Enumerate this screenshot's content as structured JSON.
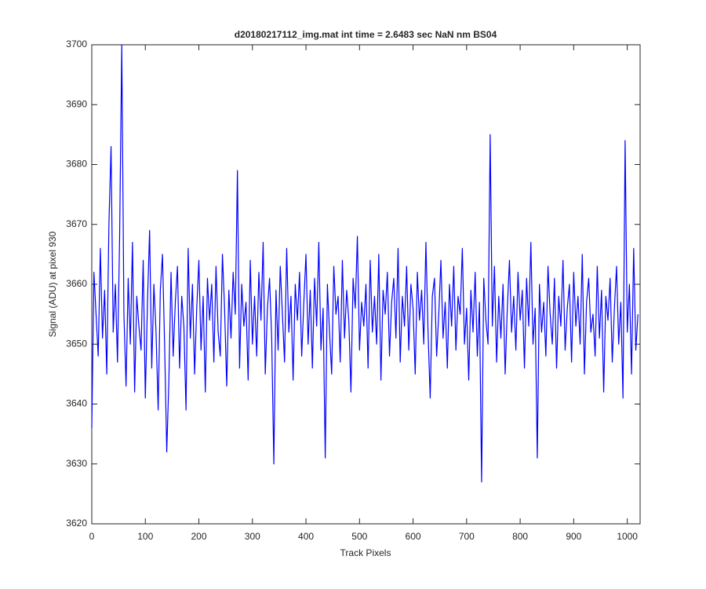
{
  "chart_data": {
    "type": "line",
    "title": "d20180217112_img.mat int time = 2.6483 sec  NaN nm BS04",
    "x_label": "Track Pixels",
    "y_label": "Signal (ADU) at pixel 930",
    "xlim": [
      0,
      1024
    ],
    "xticks": [
      0,
      100,
      200,
      300,
      400,
      500,
      600,
      700,
      800,
      900,
      1000
    ],
    "ylim": [
      3620,
      3700
    ],
    "yticks": [
      3620,
      3630,
      3640,
      3650,
      3660,
      3670,
      3680,
      3690,
      3700
    ],
    "grid": false,
    "x": [
      0,
      4,
      8,
      12,
      16,
      20,
      24,
      28,
      32,
      36,
      40,
      44,
      48,
      52,
      56,
      60,
      64,
      68,
      72,
      76,
      80,
      84,
      88,
      92,
      96,
      100,
      104,
      108,
      112,
      116,
      120,
      124,
      128,
      132,
      136,
      140,
      144,
      148,
      152,
      156,
      160,
      164,
      168,
      172,
      176,
      180,
      184,
      188,
      192,
      196,
      200,
      204,
      208,
      212,
      216,
      220,
      224,
      228,
      232,
      236,
      240,
      244,
      248,
      252,
      256,
      260,
      264,
      268,
      272,
      276,
      280,
      284,
      288,
      292,
      296,
      300,
      304,
      308,
      312,
      316,
      320,
      324,
      328,
      332,
      336,
      340,
      344,
      348,
      352,
      356,
      360,
      364,
      368,
      372,
      376,
      380,
      384,
      388,
      392,
      396,
      400,
      404,
      408,
      412,
      416,
      420,
      424,
      428,
      432,
      436,
      440,
      444,
      448,
      452,
      456,
      460,
      464,
      468,
      472,
      476,
      480,
      484,
      488,
      492,
      496,
      500,
      504,
      508,
      512,
      516,
      520,
      524,
      528,
      532,
      536,
      540,
      544,
      548,
      552,
      556,
      560,
      564,
      568,
      572,
      576,
      580,
      584,
      588,
      592,
      596,
      600,
      604,
      608,
      612,
      616,
      620,
      624,
      628,
      632,
      636,
      640,
      644,
      648,
      652,
      656,
      660,
      664,
      668,
      672,
      676,
      680,
      684,
      688,
      692,
      696,
      700,
      704,
      708,
      712,
      716,
      720,
      724,
      728,
      732,
      736,
      740,
      744,
      748,
      752,
      756,
      760,
      764,
      768,
      772,
      776,
      780,
      784,
      788,
      792,
      796,
      800,
      804,
      808,
      812,
      816,
      820,
      824,
      828,
      832,
      836,
      840,
      844,
      848,
      852,
      856,
      860,
      864,
      868,
      872,
      876,
      880,
      884,
      888,
      892,
      896,
      900,
      904,
      908,
      912,
      916,
      920,
      924,
      928,
      932,
      936,
      940,
      944,
      948,
      952,
      956,
      960,
      964,
      968,
      972,
      976,
      980,
      984,
      988,
      992,
      996,
      1000,
      1004,
      1008,
      1012,
      1016,
      1020
    ],
    "series": [
      {
        "color": "#0000ff",
        "values": [
          3636,
          3662,
          3655,
          3648,
          3666,
          3651,
          3659,
          3645,
          3670,
          3683,
          3652,
          3660,
          3647,
          3668,
          3700,
          3655,
          3643,
          3661,
          3650,
          3667,
          3642,
          3658,
          3653,
          3649,
          3664,
          3641,
          3657,
          3669,
          3646,
          3660,
          3652,
          3639,
          3659,
          3665,
          3650,
          3632,
          3644,
          3662,
          3648,
          3657,
          3663,
          3646,
          3658,
          3653,
          3639,
          3666,
          3651,
          3660,
          3645,
          3656,
          3664,
          3649,
          3658,
          3642,
          3661,
          3654,
          3660,
          3647,
          3663,
          3652,
          3648,
          3665,
          3656,
          3643,
          3659,
          3651,
          3662,
          3655,
          3679,
          3646,
          3660,
          3653,
          3657,
          3644,
          3664,
          3650,
          3658,
          3648,
          3662,
          3654,
          3667,
          3645,
          3656,
          3661,
          3651,
          3630,
          3659,
          3649,
          3663,
          3655,
          3647,
          3666,
          3652,
          3658,
          3644,
          3660,
          3654,
          3662,
          3648,
          3657,
          3665,
          3650,
          3659,
          3646,
          3661,
          3653,
          3667,
          3649,
          3656,
          3631,
          3660,
          3652,
          3645,
          3663,
          3655,
          3658,
          3647,
          3664,
          3651,
          3659,
          3654,
          3642,
          3661,
          3656,
          3668,
          3649,
          3657,
          3653,
          3660,
          3646,
          3664,
          3652,
          3658,
          3650,
          3665,
          3644,
          3659,
          3655,
          3662,
          3648,
          3657,
          3661,
          3651,
          3666,
          3647,
          3658,
          3653,
          3663,
          3649,
          3660,
          3656,
          3645,
          3662,
          3654,
          3659,
          3650,
          3667,
          3652,
          3641,
          3658,
          3661,
          3648,
          3655,
          3664,
          3651,
          3657,
          3646,
          3660,
          3653,
          3663,
          3649,
          3658,
          3655,
          3666,
          3650,
          3656,
          3644,
          3659,
          3652,
          3662,
          3648,
          3657,
          3627,
          3661,
          3654,
          3650,
          3685,
          3653,
          3663,
          3647,
          3658,
          3651,
          3660,
          3645,
          3656,
          3664,
          3652,
          3658,
          3649,
          3662,
          3654,
          3659,
          3646,
          3661,
          3653,
          3667,
          3650,
          3656,
          3631,
          3660,
          3652,
          3657,
          3648,
          3663,
          3655,
          3650,
          3661,
          3646,
          3658,
          3653,
          3664,
          3649,
          3656,
          3660,
          3647,
          3662,
          3653,
          3658,
          3650,
          3665,
          3645,
          3657,
          3661,
          3652,
          3655,
          3648,
          3663,
          3651,
          3659,
          3642,
          3658,
          3654,
          3661,
          3647,
          3656,
          3663,
          3650,
          3657,
          3641,
          3684,
          3652,
          3660,
          3645,
          3666,
          3649,
          3655
        ]
      }
    ]
  }
}
